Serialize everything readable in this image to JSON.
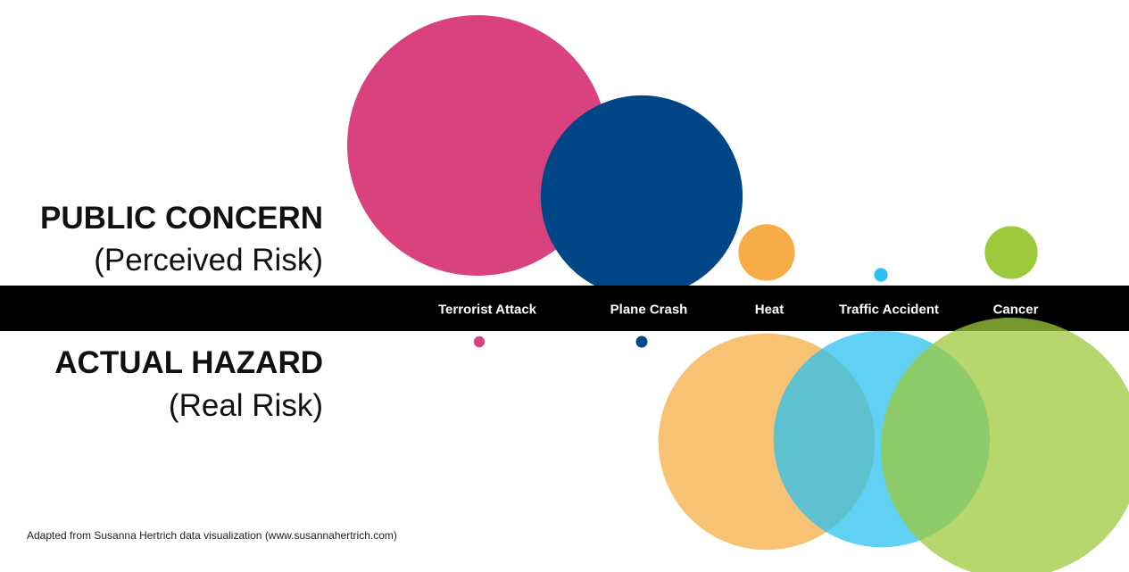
{
  "chart_data": {
    "type": "bubble",
    "scale": "circle area proportional to value; relative scale 0-100",
    "categories": [
      "Terrorist Attack",
      "Plane Crash",
      "Heat",
      "Traffic Accident",
      "Cancer"
    ],
    "series": [
      {
        "name": "PUBLIC CONCERN",
        "values": [
          100,
          60,
          4.7,
          0.27,
          4.1
        ]
      },
      {
        "name": "ACTUAL HAZARD",
        "values": [
          0.18,
          0.2,
          69,
          69,
          100
        ]
      }
    ],
    "colors": [
      "#d9427f",
      "#004687",
      "#f6ad47",
      "#2bc0ef",
      "#9dc93d"
    ],
    "band_color": "#000000"
  },
  "labels": {
    "top_title": "PUBLIC CONCERN",
    "top_subtitle": "(Perceived Risk)",
    "bottom_title": "ACTUAL HAZARD",
    "bottom_subtitle": "(Real Risk)"
  },
  "credit": "Adapted from Susanna Hertrich data visualization (www.susannahertrich.com)"
}
